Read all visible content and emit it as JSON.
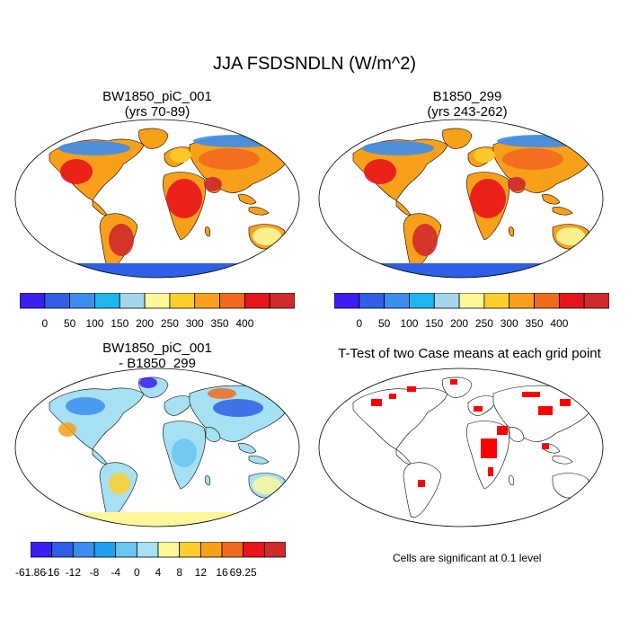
{
  "main_title": "JJA FSDSNDLN (W/m^2)",
  "panels": {
    "top_left": {
      "title_line1": "BW1850_piC_001",
      "title_line2": "(yrs 70-89)"
    },
    "top_right": {
      "title_line1": "B1850_299",
      "title_line2": "(yrs 243-262)"
    },
    "bottom_left": {
      "title_line1": "BW1850_piC_001",
      "title_line2": "- B1850_299"
    },
    "bottom_right": {
      "title_line1": "T-Test of two Case means at each grid point"
    }
  },
  "colorbars": {
    "absolute": {
      "colors": [
        "#3a1ff0",
        "#2f5fe6",
        "#3b8df0",
        "#1eb6ee",
        "#a6d6ee",
        "#fdf79a",
        "#fdcf2c",
        "#f9a01b",
        "#f26a1e",
        "#e8141b",
        "#cf2a2c"
      ],
      "labels": [
        "0",
        "50",
        "100",
        "150",
        "200",
        "250",
        "300",
        "350",
        "400"
      ]
    },
    "difference": {
      "colors": [
        "#3a1ff0",
        "#2f5fe6",
        "#3b8df0",
        "#1ea0ee",
        "#68c6f0",
        "#a6e0f3",
        "#fdf79a",
        "#fdcf2c",
        "#f9a01b",
        "#f26a1e",
        "#e8141b",
        "#cf2a2c"
      ],
      "labels": [
        "-61.86",
        "-16",
        "-12",
        "-8",
        "-4",
        "0",
        "4",
        "8",
        "12",
        "16",
        "69.25"
      ]
    }
  },
  "significance_note": "Cells are significant at 0.1 level"
}
